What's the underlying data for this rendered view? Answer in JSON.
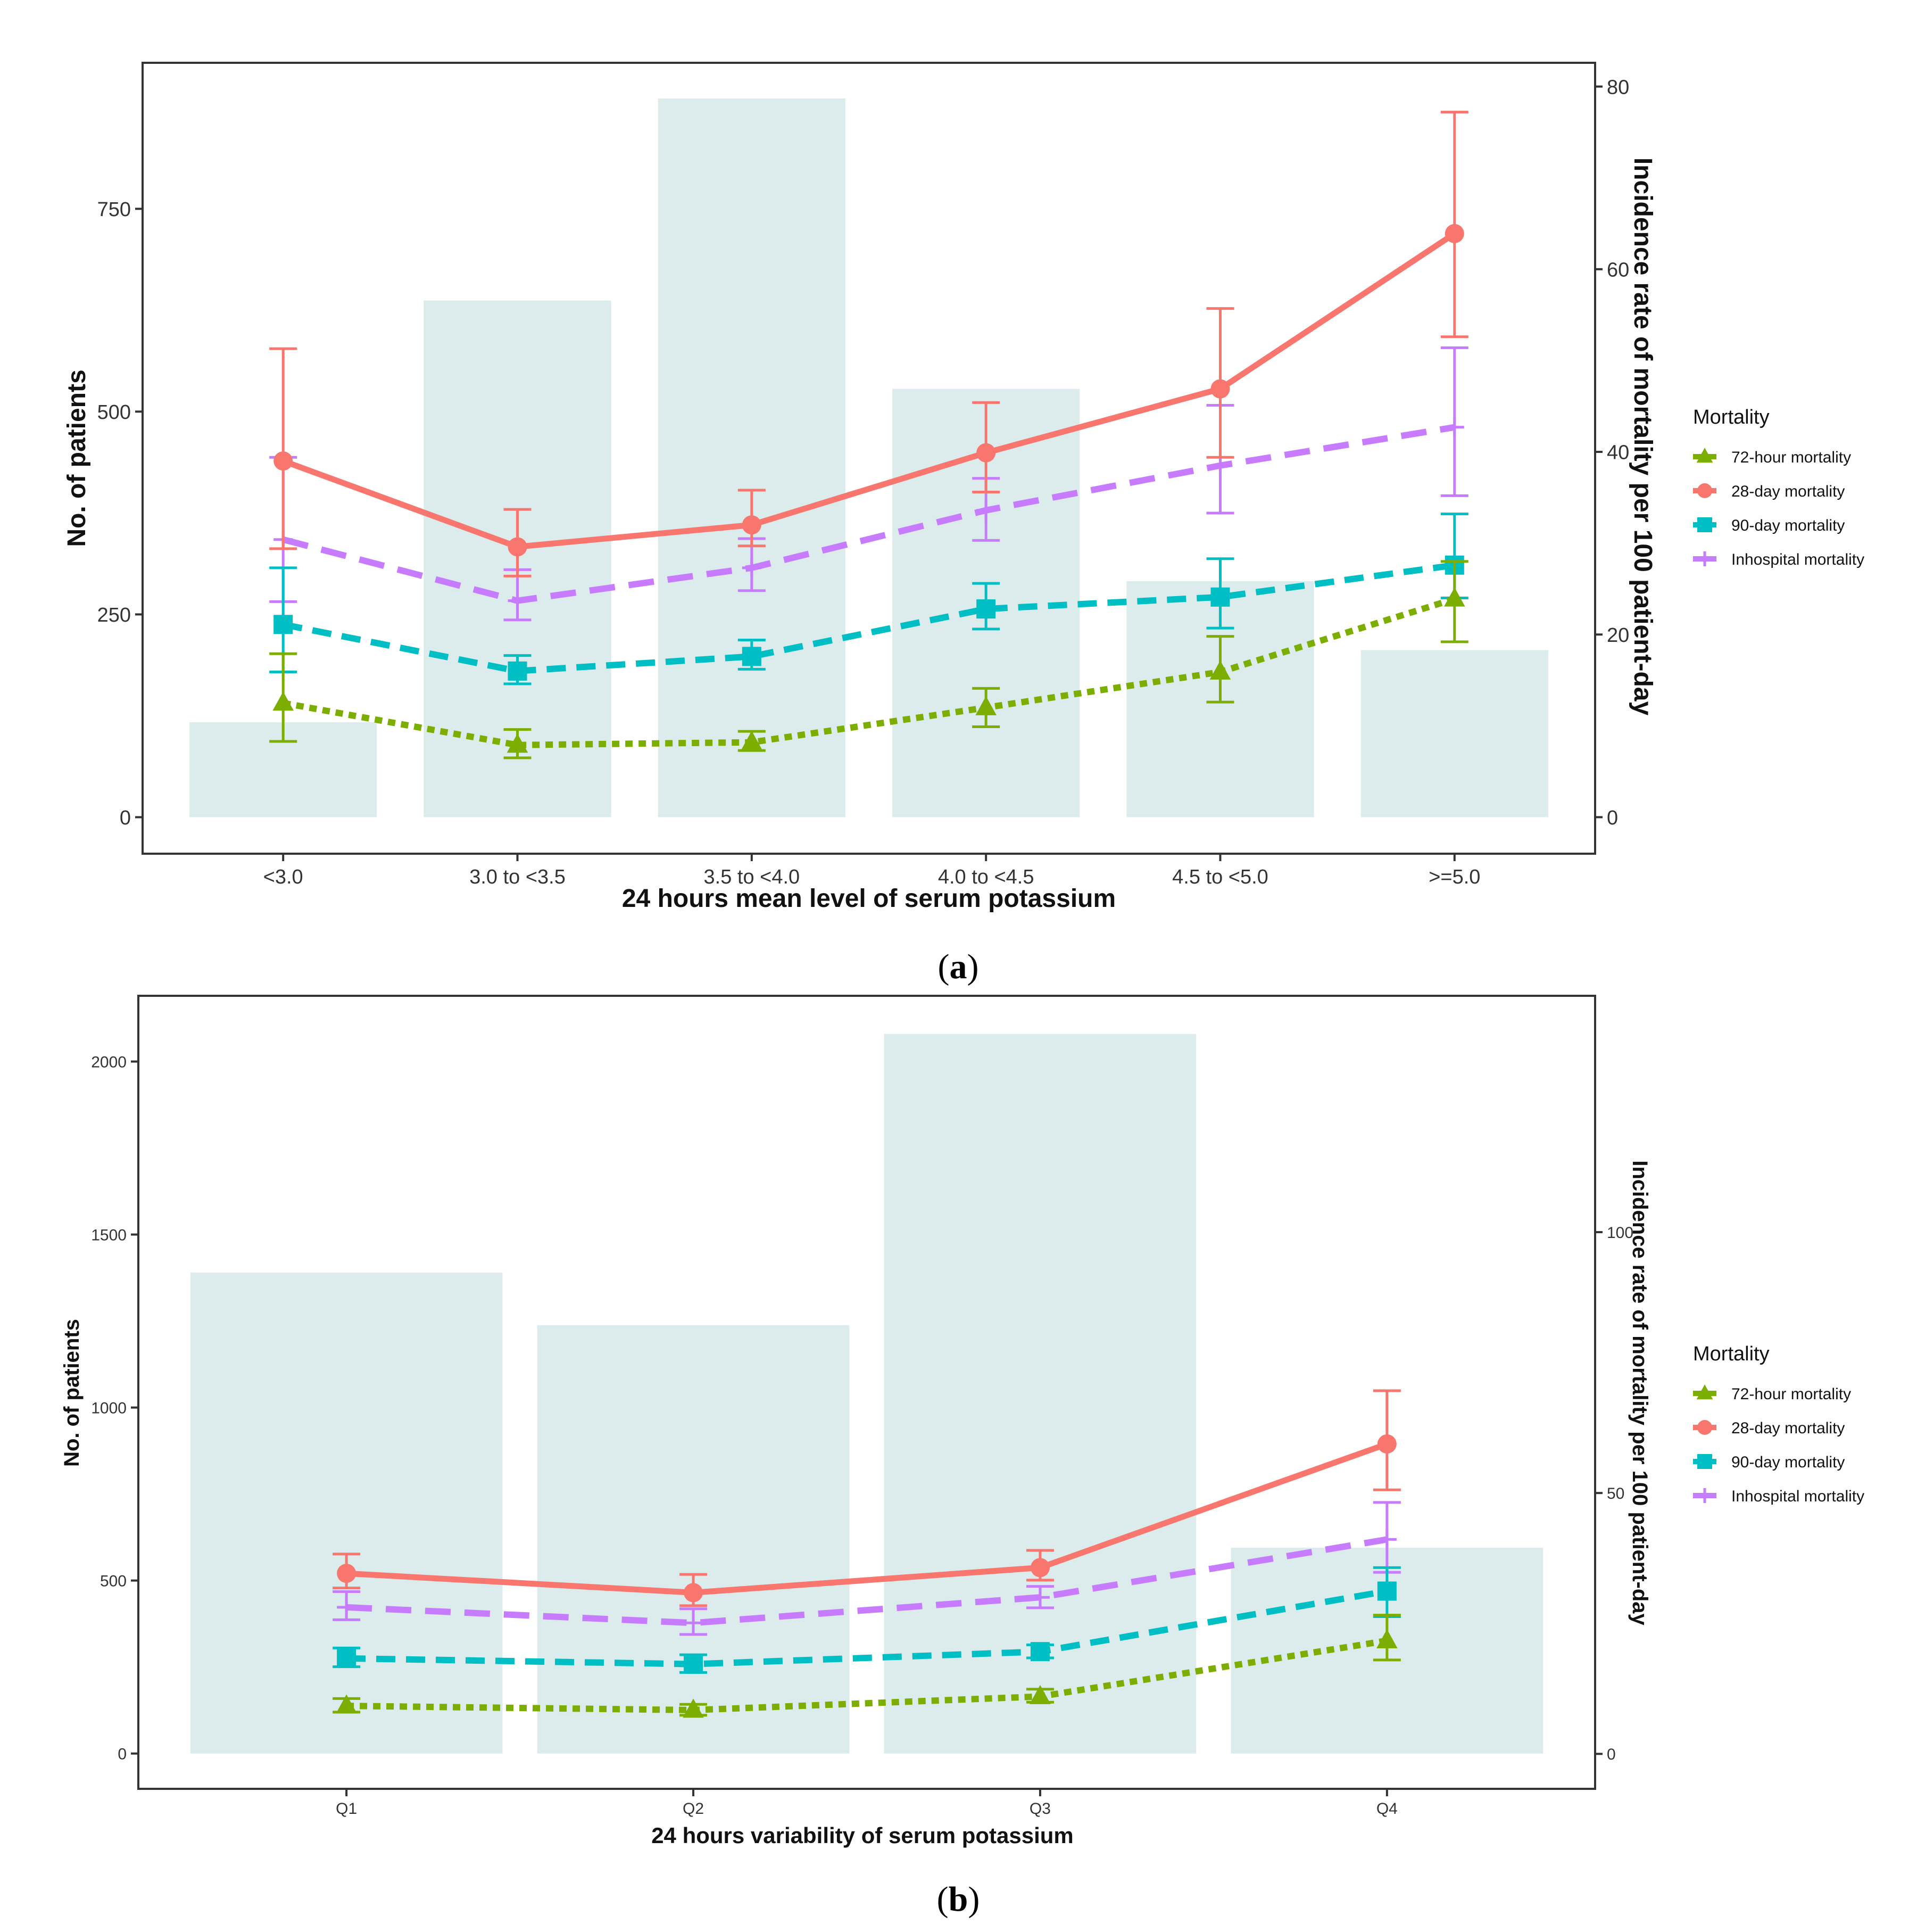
{
  "colors": {
    "bar": "#dcebeb",
    "frame": "#333333",
    "s72": "#7cae00",
    "s28": "#f8766d",
    "s90": "#00bfc4",
    "sin": "#c77cff"
  },
  "legend": {
    "title": "Mortality",
    "items": [
      "72-hour mortality",
      "28-day mortality",
      "90-day mortality",
      "Inhospital mortality"
    ]
  },
  "chart_data": [
    {
      "type": "bar",
      "caption_letter": "a",
      "xlabel": "24 hours mean level of serum potassium",
      "ylabel": "No. of patients",
      "y2label": "Incidence rate of mortality per 100 patient-day",
      "categories": [
        "<3.0",
        "3.0 to <3.5",
        "3.5 to <4.0",
        "4.0 to <4.5",
        "4.5 to <5.0",
        ">=5.0"
      ],
      "bar_values": [
        117,
        637,
        886,
        528,
        291,
        206
      ],
      "ylim": [
        -45,
        930
      ],
      "y_ticks": [
        "0",
        "250",
        "500",
        "750"
      ],
      "y2lim": [
        -4.0,
        82.6
      ],
      "y2_ticks": [
        "0",
        "20",
        "40",
        "60",
        "80"
      ],
      "series": [
        {
          "name": "72-hour mortality",
          "values": [
            12.5,
            7.9,
            8.2,
            12.0,
            15.9,
            23.9
          ],
          "lo": [
            8.3,
            6.5,
            7.3,
            9.9,
            12.6,
            19.2
          ],
          "hi": [
            17.9,
            9.6,
            9.4,
            14.1,
            19.8,
            28.0
          ]
        },
        {
          "name": "28-day mortality",
          "values": [
            39.0,
            29.6,
            32.0,
            39.9,
            46.9,
            63.9
          ],
          "lo": [
            29.4,
            26.4,
            29.7,
            35.6,
            39.4,
            52.6
          ],
          "hi": [
            51.3,
            33.7,
            35.8,
            45.4,
            55.7,
            77.2
          ]
        },
        {
          "name": "90-day mortality",
          "values": [
            21.1,
            16.0,
            17.6,
            22.8,
            24.1,
            27.6
          ],
          "lo": [
            15.9,
            14.6,
            16.2,
            20.6,
            20.7,
            24.0
          ],
          "hi": [
            27.3,
            17.7,
            19.4,
            25.6,
            28.3,
            33.2
          ]
        },
        {
          "name": "Inhospital mortality",
          "values": [
            30.4,
            23.7,
            27.3,
            33.6,
            38.5,
            42.7
          ],
          "lo": [
            23.6,
            21.6,
            24.8,
            30.3,
            33.3,
            35.2
          ],
          "hi": [
            39.4,
            27.1,
            30.5,
            37.1,
            45.1,
            51.4
          ]
        }
      ]
    },
    {
      "type": "bar",
      "caption_letter": "b",
      "xlabel": "24 hours variability of serum potassium",
      "ylabel": "No. of patients",
      "y2label": "Incidence rate of mortality per 100 patient-day",
      "categories": [
        "Q1",
        "Q2",
        "Q3",
        "Q4"
      ],
      "bar_values": [
        1390,
        1238,
        2080,
        595
      ],
      "ylim": [
        -102,
        2190
      ],
      "y_ticks": [
        "0",
        "500",
        "1000",
        "1500",
        "2000"
      ],
      "y2lim": [
        -6.7,
        145.3
      ],
      "y2_ticks": [
        "0",
        "50",
        "100"
      ],
      "series": [
        {
          "name": "72-hour mortality",
          "values": [
            9.2,
            8.4,
            11.0,
            21.7
          ],
          "lo": [
            8.0,
            7.4,
            9.9,
            18.0
          ],
          "hi": [
            10.6,
            9.5,
            12.4,
            26.6
          ]
        },
        {
          "name": "28-day mortality",
          "values": [
            34.6,
            30.9,
            35.7,
            59.4
          ],
          "lo": [
            31.8,
            28.4,
            33.3,
            50.6
          ],
          "hi": [
            38.3,
            34.4,
            39.0,
            69.6
          ]
        },
        {
          "name": "90-day mortality",
          "values": [
            18.3,
            17.2,
            19.6,
            31.2
          ],
          "lo": [
            16.7,
            15.6,
            18.4,
            26.3
          ],
          "hi": [
            20.3,
            19.0,
            20.9,
            35.7
          ]
        },
        {
          "name": "Inhospital mortality",
          "values": [
            28.1,
            25.1,
            30.0,
            41.1
          ],
          "lo": [
            25.7,
            22.9,
            28.0,
            34.8
          ],
          "hi": [
            31.1,
            27.8,
            32.1,
            48.2
          ]
        }
      ]
    }
  ]
}
